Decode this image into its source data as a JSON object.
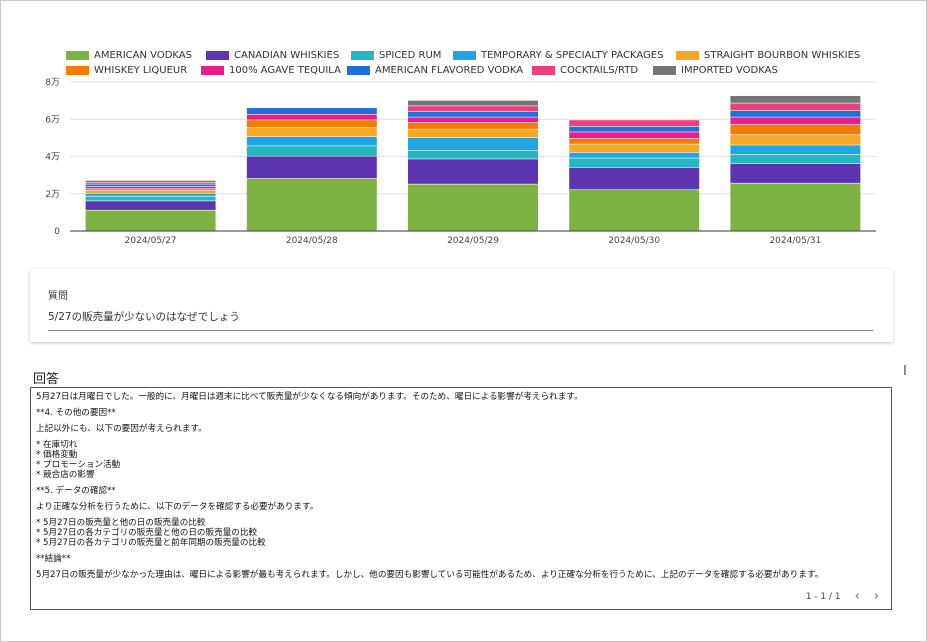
{
  "legend": {
    "items": [
      {
        "label": "AMERICAN VODKAS",
        "color": "#7cb342"
      },
      {
        "label": "CANADIAN WHISKIES",
        "color": "#5e35b1"
      },
      {
        "label": "SPICED RUM",
        "color": "#26b7c5"
      },
      {
        "label": "TEMPORARY & SPECIALTY PACKAGES",
        "color": "#1ea7e4"
      },
      {
        "label": "STRAIGHT BOURBON WHISKIES",
        "color": "#f9a825"
      },
      {
        "label": "WHISKEY LIQUEUR",
        "color": "#f57c00"
      },
      {
        "label": "100% AGAVE TEQUILA",
        "color": "#e91e8c"
      },
      {
        "label": "AMERICAN FLAVORED VODKA",
        "color": "#1e6fd9"
      },
      {
        "label": "COCKTAILS/RTD",
        "color": "#ec407a"
      },
      {
        "label": "IMPORTED VODKAS",
        "color": "#757575"
      }
    ]
  },
  "chart_data": {
    "type": "bar",
    "stacked": true,
    "categories": [
      "2024/05/27",
      "2024/05/28",
      "2024/05/29",
      "2024/05/30",
      "2024/05/31"
    ],
    "y_tick_labels": [
      "0",
      "2万",
      "4万",
      "6万",
      "8万"
    ],
    "ylim": [
      0,
      80000
    ],
    "grid": true,
    "legend_position": "top",
    "series": [
      {
        "name": "AMERICAN VODKAS",
        "values": [
          11000,
          28000,
          25000,
          22000,
          25500
        ]
      },
      {
        "name": "CANADIAN WHISKIES",
        "values": [
          5000,
          12000,
          13500,
          12000,
          10500
        ]
      },
      {
        "name": "SPICED RUM",
        "values": [
          2500,
          5500,
          4500,
          5000,
          5000
        ]
      },
      {
        "name": "TEMPORARY & SPECIALTY PACKAGES",
        "values": [
          1500,
          5000,
          7000,
          3000,
          5000
        ]
      },
      {
        "name": "STRAIGHT BOURBON WHISKIES",
        "values": [
          1500,
          5000,
          4500,
          4500,
          5500
        ]
      },
      {
        "name": "WHISKEY LIQUEUR",
        "values": [
          1000,
          4000,
          3500,
          3000,
          5500
        ]
      },
      {
        "name": "100% AGAVE TEQUILA",
        "values": [
          1200,
          3000,
          3000,
          3500,
          4000
        ]
      },
      {
        "name": "AMERICAN FLAVORED VODKA",
        "values": [
          1300,
          3500,
          3000,
          3000,
          3500
        ]
      },
      {
        "name": "COCKTAILS/RTD",
        "values": [
          1000,
          0,
          3000,
          3500,
          4000
        ]
      },
      {
        "name": "IMPORTED VODKAS",
        "values": [
          1000,
          0,
          3000,
          0,
          4000
        ]
      }
    ]
  },
  "question": {
    "label": "質問",
    "text": "5/27の販売量が少ないのはなぜでしょう"
  },
  "answer": {
    "title": "回答",
    "lines": [
      "5月27日は月曜日でした。一般的に、月曜日は週末に比べて販売量が少なくなる傾向があります。そのため、曜日による影響が考えられます。",
      "",
      "**4. その他の要因**",
      "",
      "上記以外にも、以下の要因が考えられます。",
      "",
      "* 在庫切れ",
      "* 価格変動",
      "* プロモーション活動",
      "* 競合店の影響",
      "",
      "**5. データの確認**",
      "",
      "より正確な分析を行うために、以下のデータを確認する必要があります。",
      "",
      "* 5月27日の販売量と他の日の販売量の比較",
      "* 5月27日の各カテゴリの販売量と他の日の販売量の比較",
      "* 5月27日の各カテゴリの販売量と前年同期の販売量の比較",
      "",
      "**結論**",
      "",
      "5月27日の販売量が少なかった理由は、曜日による影響が最も考えられます。しかし、他の要因も影響している可能性があるため、より正確な分析を行うために、上記のデータを確認する必要があります。"
    ],
    "pager_text": "1 - 1 / 1",
    "prev_icon": "‹",
    "next_icon": "›"
  }
}
